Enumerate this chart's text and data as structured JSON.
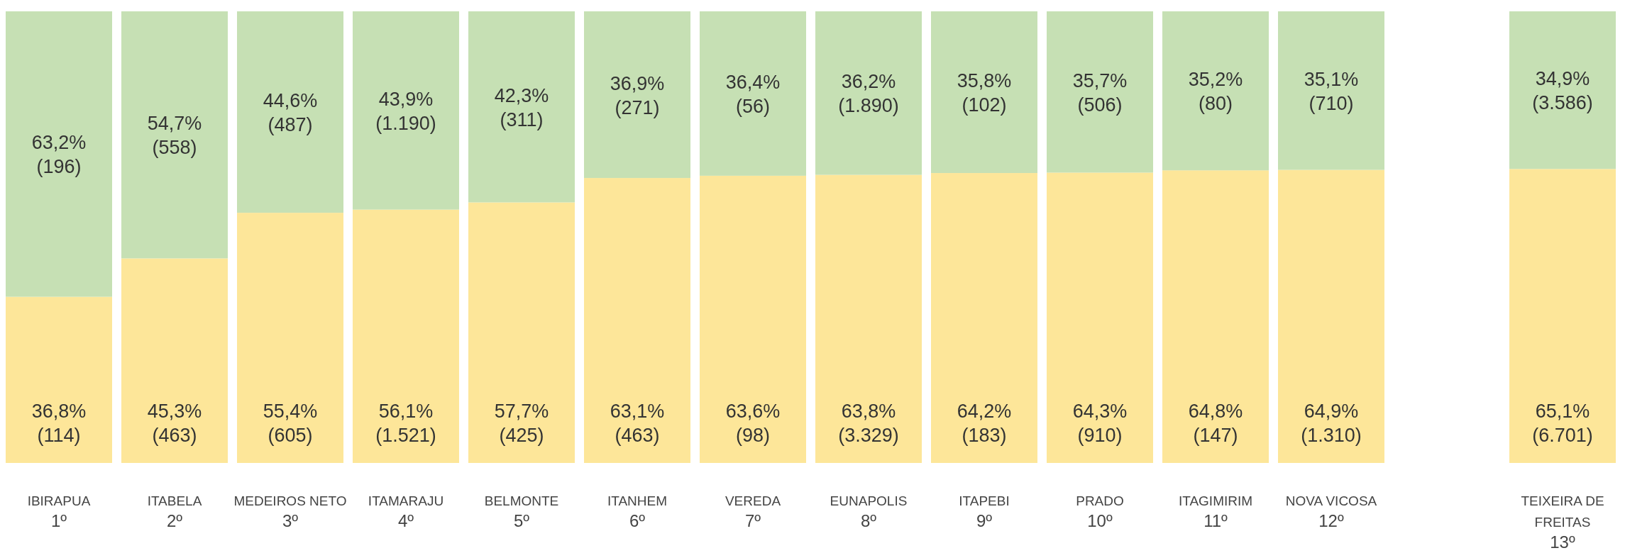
{
  "chart_data": {
    "type": "bar",
    "stacked": true,
    "categories": [
      "IBIRAPUA\n1º",
      "ITABELA\n2º",
      "MEDEIROS NETO\n3º",
      "ITAMARAJU\n4º",
      "BELMONTE\n5º",
      "ITANHEM\n6º",
      "VEREDA\n7º",
      "EUNAPOLIS\n8º",
      "ITAPEBI\n9º",
      "PRADO\n10º",
      "ITAGIMIRIM\n11º",
      "NOVA VICOSA\n12º",
      null,
      "TEIXEIRA DE\nFREITAS\n13º"
    ],
    "series": [
      {
        "color": "#fde699",
        "values": [
          36.8,
          45.3,
          55.4,
          56.1,
          57.7,
          63.1,
          63.6,
          63.8,
          64.2,
          64.3,
          64.8,
          64.9,
          null,
          65.1
        ],
        "value_labels": [
          "36,8%\n(114)",
          "45,3%\n(463)",
          "55,4%\n(605)",
          "56,1%\n(1.521)",
          "57,7%\n(425)",
          "63,1%\n(463)",
          "63,6%\n(98)",
          "63,8%\n(3.329)",
          "64,2%\n(183)",
          "64,3%\n(910)",
          "64,8%\n(147)",
          "64,9%\n(1.310)",
          null,
          "65,1%\n(6.701)"
        ]
      },
      {
        "color": "#c6e0b4",
        "values": [
          63.2,
          54.7,
          44.6,
          43.9,
          42.3,
          36.9,
          36.4,
          36.2,
          35.8,
          35.7,
          35.2,
          35.1,
          null,
          34.9
        ],
        "value_labels": [
          "63,2%\n(196)",
          "54,7%\n(558)",
          "44,6%\n(487)",
          "43,9%\n(1.190)",
          "42,3%\n(311)",
          "36,9%\n(271)",
          "36,4%\n(56)",
          "36,2%\n(1.890)",
          "35,8%\n(102)",
          "35,7%\n(506)",
          "35,2%\n(80)",
          "35,1%\n(710)",
          null,
          "34,9%\n(3.586)"
        ]
      }
    ]
  }
}
